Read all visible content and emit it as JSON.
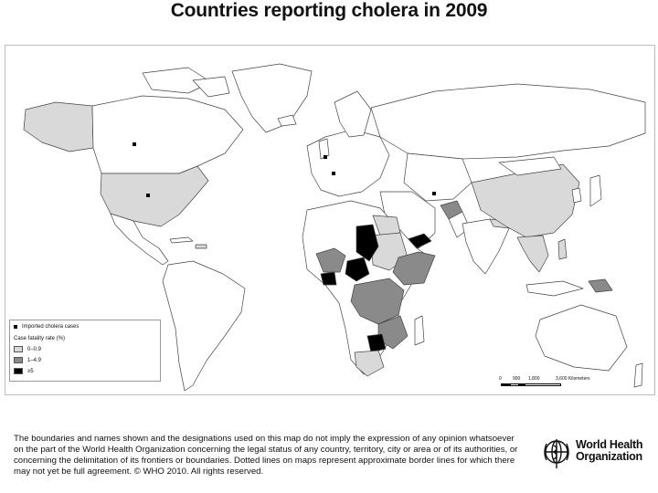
{
  "title": "Countries reporting cholera in 2009",
  "legend": {
    "imported_label": "Imported cholera cases",
    "heading": "Case fatality rate (%)",
    "classes": [
      {
        "label": "0–0.9",
        "color": "#d9d9d9"
      },
      {
        "label": "1–4.9",
        "color": "#8a8a8a"
      },
      {
        "label": "≥5",
        "color": "#000000"
      }
    ]
  },
  "scale_bar": {
    "ticks": [
      "0",
      "900",
      "1,800",
      "3,600 Kilometers"
    ]
  },
  "disclaimer": "The boundaries and names shown and the designations used on this map do not imply the expression of any opinion whatsoever on the part of the World Health Organization concerning the legal status of any country, territory, city or area or of its authorities, or concerning the delimitation of its frontiers or boundaries. Dotted lines on maps represent approximate border lines for which there may not yet be full agreement. © WHO 2010. All rights reserved.",
  "logo": {
    "line1": "World Health",
    "line2": "Organization"
  },
  "colors": {
    "land": "#ffffff",
    "border": "#444444",
    "low": "#d9d9d9",
    "mid": "#8a8a8a",
    "high": "#000000"
  }
}
